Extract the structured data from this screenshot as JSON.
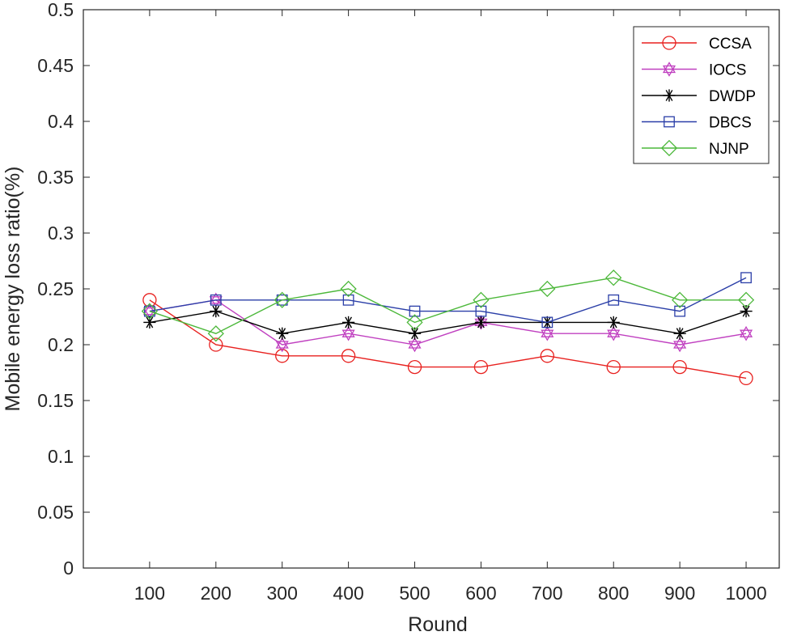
{
  "chart_data": {
    "type": "line",
    "title": "",
    "xlabel": "Round",
    "ylabel": "Mobile energy loss ratio(%)",
    "x": [
      100,
      200,
      300,
      400,
      500,
      600,
      700,
      800,
      900,
      1000
    ],
    "x_tick_labels": [
      "100",
      "200",
      "300",
      "400",
      "500",
      "600",
      "700",
      "800",
      "900",
      "1000"
    ],
    "xlim": [
      0,
      1050
    ],
    "ylim": [
      0,
      0.5
    ],
    "y_ticks": [
      0,
      0.05,
      0.1,
      0.15,
      0.2,
      0.25,
      0.3,
      0.35,
      0.4,
      0.45,
      0.5
    ],
    "y_tick_labels": [
      "0",
      "0.05",
      "0.1",
      "0.15",
      "0.2",
      "0.25",
      "0.3",
      "0.35",
      "0.4",
      "0.45",
      "0.5"
    ],
    "grid": false,
    "legend_position": "top-right",
    "series": [
      {
        "name": "CCSA",
        "color": "#e8211f",
        "marker": "circle",
        "values": [
          0.24,
          0.2,
          0.19,
          0.19,
          0.18,
          0.18,
          0.19,
          0.18,
          0.18,
          0.17
        ]
      },
      {
        "name": "IOCS",
        "color": "#c040c0",
        "marker": "hexagram",
        "values": [
          0.23,
          0.24,
          0.2,
          0.21,
          0.2,
          0.22,
          0.21,
          0.21,
          0.2,
          0.21
        ]
      },
      {
        "name": "DWDP",
        "color": "#000000",
        "marker": "asterisk",
        "values": [
          0.22,
          0.23,
          0.21,
          0.22,
          0.21,
          0.22,
          0.22,
          0.22,
          0.21,
          0.23
        ]
      },
      {
        "name": "DBCS",
        "color": "#2b3fa8",
        "marker": "square",
        "values": [
          0.23,
          0.24,
          0.24,
          0.24,
          0.23,
          0.23,
          0.22,
          0.24,
          0.23,
          0.26
        ]
      },
      {
        "name": "NJNP",
        "color": "#4cb83a",
        "marker": "diamond",
        "values": [
          0.23,
          0.21,
          0.24,
          0.25,
          0.22,
          0.24,
          0.25,
          0.26,
          0.24,
          0.24
        ]
      }
    ]
  }
}
